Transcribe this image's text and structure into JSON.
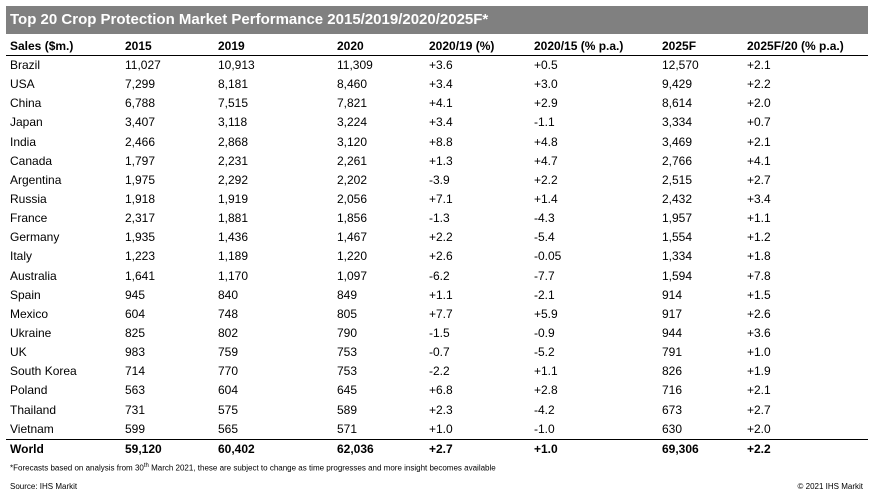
{
  "title": "Top 20 Crop Protection Market Performance 2015/2019/2020/2025F*",
  "table": {
    "headers": [
      "Sales ($m.)",
      "2015",
      "2019",
      "2020",
      "2020/19 (%)",
      "2020/15 (% p.a.)",
      "2025F",
      "2025F/20 (% p.a.)"
    ],
    "rows": [
      [
        "Brazil",
        "11,027",
        "10,913",
        "11,309",
        "+3.6",
        "+0.5",
        "12,570",
        "+2.1"
      ],
      [
        "USA",
        "7,299",
        "8,181",
        "8,460",
        "+3.4",
        "+3.0",
        "9,429",
        "+2.2"
      ],
      [
        "China",
        "6,788",
        "7,515",
        "7,821",
        "+4.1",
        "+2.9",
        "8,614",
        "+2.0"
      ],
      [
        "Japan",
        "3,407",
        "3,118",
        "3,224",
        "+3.4",
        "-1.1",
        "3,334",
        "+0.7"
      ],
      [
        "India",
        "2,466",
        "2,868",
        "3,120",
        "+8.8",
        "+4.8",
        "3,469",
        "+2.1"
      ],
      [
        "Canada",
        "1,797",
        "2,231",
        "2,261",
        "+1.3",
        "+4.7",
        "2,766",
        "+4.1"
      ],
      [
        "Argentina",
        "1,975",
        "2,292",
        "2,202",
        "-3.9",
        "+2.2",
        "2,515",
        "+2.7"
      ],
      [
        "Russia",
        "1,918",
        "1,919",
        "2,056",
        "+7.1",
        "+1.4",
        "2,432",
        "+3.4"
      ],
      [
        "France",
        "2,317",
        "1,881",
        "1,856",
        "-1.3",
        "-4.3",
        "1,957",
        "+1.1"
      ],
      [
        "Germany",
        "1,935",
        "1,436",
        "1,467",
        "+2.2",
        "-5.4",
        "1,554",
        "+1.2"
      ],
      [
        "Italy",
        "1,223",
        "1,189",
        "1,220",
        "+2.6",
        "-0.05",
        "1,334",
        "+1.8"
      ],
      [
        "Australia",
        "1,641",
        "1,170",
        "1,097",
        "-6.2",
        "-7.7",
        "1,594",
        "+7.8"
      ],
      [
        "Spain",
        "945",
        "840",
        "849",
        "+1.1",
        "-2.1",
        "914",
        "+1.5"
      ],
      [
        "Mexico",
        "604",
        "748",
        "805",
        "+7.7",
        "+5.9",
        "917",
        "+2.6"
      ],
      [
        "Ukraine",
        "825",
        "802",
        "790",
        "-1.5",
        "-0.9",
        "944",
        "+3.6"
      ],
      [
        "UK",
        "983",
        "759",
        "753",
        "-0.7",
        "-5.2",
        "791",
        "+1.0"
      ],
      [
        "South Korea",
        "714",
        "770",
        "753",
        "-2.2",
        "+1.1",
        "826",
        "+1.9"
      ],
      [
        "Poland",
        "563",
        "604",
        "645",
        "+6.8",
        "+2.8",
        "716",
        "+2.1"
      ],
      [
        "Thailand",
        "731",
        "575",
        "589",
        "+2.3",
        "-4.2",
        "673",
        "+2.7"
      ],
      [
        "Vietnam",
        "599",
        "565",
        "571",
        "+1.0",
        "-1.0",
        "630",
        "+2.0"
      ]
    ],
    "total": [
      "World",
      "59,120",
      "60,402",
      "62,036",
      "+2.7",
      "+1.0",
      "69,306",
      "+2.2"
    ]
  },
  "footnote": {
    "before": "*Forecasts based on analysis from 30",
    "sup": "th",
    "after": " March 2021, these are subject to change as time progresses and more insight becomes available"
  },
  "source": "Source: IHS Markit",
  "copyright": "© 2021 IHS Markit"
}
